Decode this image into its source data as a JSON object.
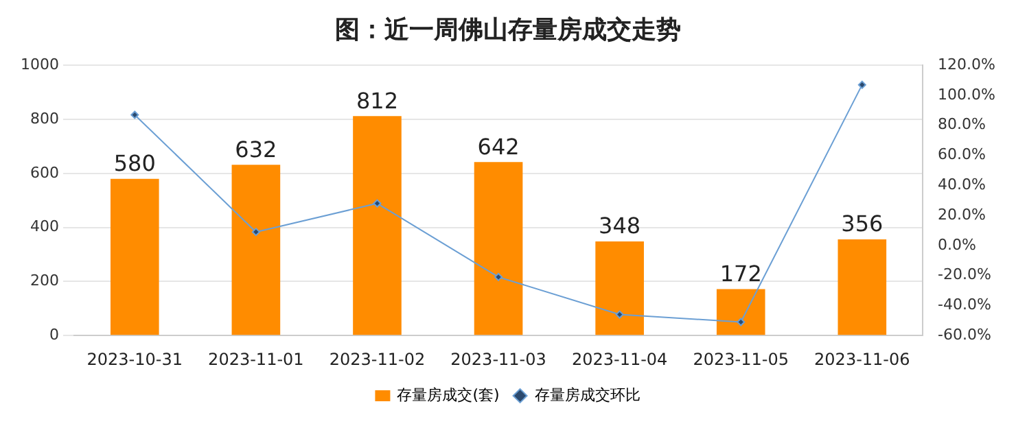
{
  "chart_data": {
    "type": "bar",
    "title": "图：近一周佛山存量房成交走势",
    "categories": [
      "2023-10-31",
      "2023-11-01",
      "2023-11-02",
      "2023-11-03",
      "2023-11-04",
      "2023-11-05",
      "2023-11-06"
    ],
    "series": [
      {
        "name": "存量房成交(套)",
        "color": "#ff8c00",
        "values": [
          580,
          632,
          812,
          642,
          348,
          172,
          356
        ],
        "value_labels": [
          "580",
          "632",
          "812",
          "642",
          "348",
          "172",
          "356"
        ]
      },
      {
        "name": "存量房成交环比",
        "type": "line",
        "axis": "y2",
        "color": "#6b9fd4",
        "marker": "diamond",
        "values": [
          87,
          9,
          28,
          -21,
          -46,
          -51,
          107
        ]
      }
    ],
    "ylim": [
      0,
      1000
    ],
    "yticks": [
      0,
      200,
      400,
      600,
      800,
      1000
    ],
    "y2lim": [
      -60,
      120
    ],
    "y2ticks": [
      {
        "value": -60,
        "label": "-60.0%"
      },
      {
        "value": -40,
        "label": "-40.0%"
      },
      {
        "value": -20,
        "label": "-20.0%"
      },
      {
        "value": 0,
        "label": "0.0%"
      },
      {
        "value": 20,
        "label": "20.0%"
      },
      {
        "value": 40,
        "label": "40.0%"
      },
      {
        "value": 60,
        "label": "60.0%"
      },
      {
        "value": 80,
        "label": "80.0%"
      },
      {
        "value": 100,
        "label": "100.0%"
      },
      {
        "value": 120,
        "label": "120.0%"
      }
    ],
    "grid": "y",
    "legend": "bottom"
  }
}
